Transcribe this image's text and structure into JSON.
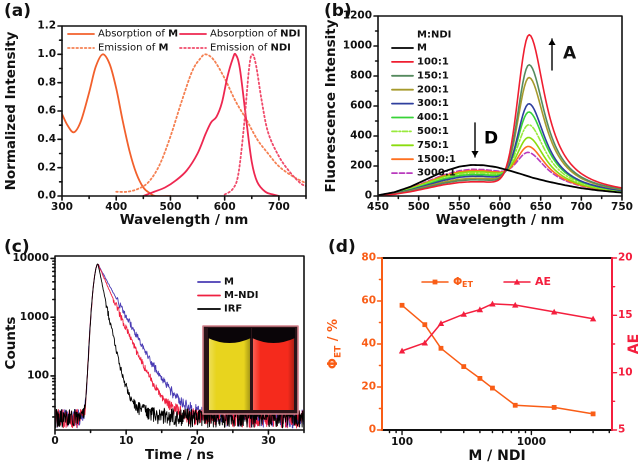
{
  "figure": {
    "background": "#ffffff"
  },
  "panels": {
    "a": {
      "tag": "(a)"
    },
    "b": {
      "tag": "(b)"
    },
    "c": {
      "tag": "(c)"
    },
    "d": {
      "tag": "(d)"
    }
  },
  "chart_data": [
    {
      "id": "a",
      "type": "line",
      "xlabel": "Wavelength / nm",
      "ylabel": "Normalized Intensity",
      "xlim": [
        300,
        750
      ],
      "ylim": [
        0,
        1.2
      ],
      "xticks": [
        300,
        400,
        500,
        600,
        700
      ],
      "xminor": [
        350,
        450,
        550,
        650,
        750
      ],
      "ytick_vals": [
        0,
        0.2,
        0.4,
        0.6,
        0.8,
        1.0,
        1.2
      ],
      "ytick_labels": [
        "0.0",
        "0.2",
        "0.4",
        "0.6",
        "0.8",
        "1.0",
        "1.2"
      ],
      "legend_position": "top-inside",
      "series": [
        {
          "label_pre": "Absorption of ",
          "label_bold": "M",
          "color": "#f2602c",
          "style": "solid",
          "points": [
            [
              300,
              0.58
            ],
            [
              310,
              0.5
            ],
            [
              322,
              0.45
            ],
            [
              335,
              0.53
            ],
            [
              350,
              0.73
            ],
            [
              362,
              0.91
            ],
            [
              375,
              1.0
            ],
            [
              388,
              0.93
            ],
            [
              400,
              0.76
            ],
            [
              412,
              0.53
            ],
            [
              425,
              0.31
            ],
            [
              437,
              0.16
            ],
            [
              450,
              0.06
            ],
            [
              462,
              0.02
            ],
            [
              472,
              0.0
            ],
            [
              500,
              0.0
            ]
          ]
        },
        {
          "label_pre": "Emission of ",
          "label_bold": "M",
          "color": "#f58052",
          "style": "dotted",
          "points": [
            [
              400,
              0.03
            ],
            [
              420,
              0.03
            ],
            [
              440,
              0.05
            ],
            [
              460,
              0.1
            ],
            [
              480,
              0.22
            ],
            [
              500,
              0.42
            ],
            [
              520,
              0.66
            ],
            [
              540,
              0.88
            ],
            [
              555,
              0.97
            ],
            [
              565,
              1.0
            ],
            [
              580,
              0.96
            ],
            [
              600,
              0.83
            ],
            [
              620,
              0.67
            ],
            [
              640,
              0.54
            ],
            [
              660,
              0.4
            ],
            [
              680,
              0.3
            ],
            [
              700,
              0.21
            ],
            [
              725,
              0.14
            ],
            [
              750,
              0.09
            ]
          ]
        },
        {
          "label_pre": "Absorption of ",
          "label_bold": "NDI",
          "color": "#ee2750",
          "style": "solid",
          "points": [
            [
              450,
              0.0
            ],
            [
              470,
              0.03
            ],
            [
              490,
              0.06
            ],
            [
              510,
              0.11
            ],
            [
              530,
              0.18
            ],
            [
              550,
              0.3
            ],
            [
              565,
              0.44
            ],
            [
              575,
              0.52
            ],
            [
              585,
              0.56
            ],
            [
              595,
              0.66
            ],
            [
              605,
              0.84
            ],
            [
              615,
              0.97
            ],
            [
              620,
              1.0
            ],
            [
              628,
              0.9
            ],
            [
              640,
              0.53
            ],
            [
              650,
              0.24
            ],
            [
              660,
              0.1
            ],
            [
              675,
              0.03
            ],
            [
              690,
              0.01
            ],
            [
              700,
              0.0
            ]
          ]
        },
        {
          "label_pre": "Emission of ",
          "label_bold": "NDI",
          "color": "#f04a6a",
          "style": "dotted",
          "points": [
            [
              600,
              0.01
            ],
            [
              615,
              0.05
            ],
            [
              625,
              0.15
            ],
            [
              635,
              0.47
            ],
            [
              645,
              0.9
            ],
            [
              651,
              1.0
            ],
            [
              658,
              0.92
            ],
            [
              668,
              0.68
            ],
            [
              680,
              0.45
            ],
            [
              700,
              0.28
            ],
            [
              720,
              0.17
            ],
            [
              740,
              0.09
            ],
            [
              750,
              0.07
            ]
          ]
        }
      ]
    },
    {
      "id": "b",
      "type": "line",
      "xlabel": "Wavelength / nm",
      "ylabel": "Fluorescence Intensity",
      "xlim": [
        450,
        750
      ],
      "ylim": [
        0,
        1200
      ],
      "xticks": [
        450,
        500,
        550,
        600,
        650,
        700,
        750
      ],
      "yticks": [
        0,
        200,
        400,
        600,
        800,
        1000,
        1200
      ],
      "legend_title": "M:NDI",
      "acceptor_center": 636,
      "annotations": [
        {
          "text": "A",
          "arrow": "up"
        },
        {
          "text": "D",
          "arrow": "down"
        }
      ],
      "reference_points": [
        [
          450,
          5
        ],
        [
          470,
          25
        ],
        [
          490,
          62
        ],
        [
          510,
          112
        ],
        [
          530,
          162
        ],
        [
          550,
          196
        ],
        [
          565,
          207
        ],
        [
          580,
          205
        ],
        [
          595,
          193
        ],
        [
          610,
          172
        ],
        [
          625,
          148
        ],
        [
          640,
          122
        ],
        [
          660,
          95
        ],
        [
          680,
          72
        ],
        [
          700,
          52
        ],
        [
          720,
          38
        ],
        [
          750,
          22
        ]
      ],
      "series": [
        {
          "name": "M",
          "color": "#000000",
          "style": "solid",
          "kind": "reference"
        },
        {
          "name": "100:1",
          "color": "#ef1e30",
          "style": "solid",
          "donor": 95,
          "peak": 1075
        },
        {
          "name": "150:1",
          "color": "#558a5e",
          "style": "solid",
          "donor": 108,
          "peak": 875
        },
        {
          "name": "200:1",
          "color": "#a69a2c",
          "style": "solid",
          "donor": 118,
          "peak": 790
        },
        {
          "name": "300:1",
          "color": "#2f3f9e",
          "style": "solid",
          "donor": 132,
          "peak": 615
        },
        {
          "name": "400:1",
          "color": "#37d337",
          "style": "solid",
          "donor": 143,
          "peak": 560
        },
        {
          "name": "500:1",
          "color": "#99ea3d",
          "style": "dashdot",
          "donor": 152,
          "peak": 475
        },
        {
          "name": "750:1",
          "color": "#8adc0e",
          "style": "solid",
          "donor": 162,
          "peak": 390
        },
        {
          "name": "1500:1",
          "color": "#fe7020",
          "style": "solid",
          "donor": 170,
          "peak": 330
        },
        {
          "name": "3000:1",
          "color": "#b93abd",
          "style": "dashed",
          "donor": 178,
          "peak": 290
        }
      ]
    },
    {
      "id": "c",
      "type": "line",
      "xlabel": "Time / ns",
      "ylabel": "Counts",
      "xlim": [
        0,
        35
      ],
      "yscale": "log",
      "ylim": [
        12,
        11000
      ],
      "xticks": [
        0,
        10,
        20,
        30
      ],
      "xminor": [
        5,
        15,
        25,
        35
      ],
      "ytick_vals": [
        100,
        1000,
        10000
      ],
      "ytick_labels": [
        "100",
        "1000",
        "10000"
      ],
      "decay_model": {
        "peak": 8000,
        "peak_time": 6.05,
        "rise_sigma": 0.5,
        "noise_floor_min": 13,
        "noise_floor_max": 27
      },
      "series": [
        {
          "name": "M",
          "color": "#4a3cb4",
          "tau": 1.9,
          "seed": 7
        },
        {
          "name": "M-NDI",
          "color": "#ef2040",
          "tau": 1.55,
          "seed": 99
        },
        {
          "name": "IRF",
          "color": "#000000",
          "tau": 0.72,
          "tau2": 2.6,
          "amp2": 55,
          "seed": 1234
        }
      ],
      "inset": {
        "name": "cuvette-photo",
        "left_liquid_color": "#e8d41e",
        "right_liquid_color": "#f52a1c",
        "cap_color": "#0a0508",
        "frame_color": "#d4828c"
      }
    },
    {
      "id": "d",
      "type": "line",
      "xlabel": "M / NDI",
      "xscale": "log",
      "xlim": [
        70,
        4200
      ],
      "xticks": [
        100,
        1000
      ],
      "xtick_labels": [
        "100",
        "1000"
      ],
      "x_minor": [
        80,
        90,
        200,
        300,
        400,
        500,
        600,
        700,
        800,
        900,
        2000,
        3000,
        4000
      ],
      "left_axis": {
        "label_main": "Φ",
        "label_sub": "ET",
        "label_suffix": " / %",
        "color": "#f95d16",
        "lim": [
          0,
          80
        ],
        "ticks": [
          0,
          20,
          40,
          60,
          80
        ],
        "minor": [
          10,
          30,
          50,
          70
        ]
      },
      "right_axis": {
        "label": "AE",
        "color": "#f41f3e",
        "lim": [
          5,
          20
        ],
        "ticks": [
          5,
          10,
          15,
          20
        ],
        "minor": [
          7.5,
          12.5,
          17.5
        ]
      },
      "x": [
        100,
        150,
        200,
        300,
        400,
        500,
        750,
        1500,
        3000
      ],
      "series": [
        {
          "name": "ΦET",
          "legend_main": "Φ",
          "legend_sub": "ET",
          "axis": "left",
          "color": "#f95d16",
          "marker": "square",
          "values": [
            58,
            49,
            38,
            29.5,
            24,
            19.5,
            11.5,
            10.5,
            7.5
          ]
        },
        {
          "name": "AE",
          "legend_main": "AE",
          "legend_sub": "",
          "axis": "right",
          "color": "#f41f3e",
          "marker": "triangle",
          "values": [
            11.9,
            12.6,
            14.3,
            15.1,
            15.5,
            16.0,
            15.9,
            15.3,
            14.7
          ]
        }
      ]
    }
  ]
}
